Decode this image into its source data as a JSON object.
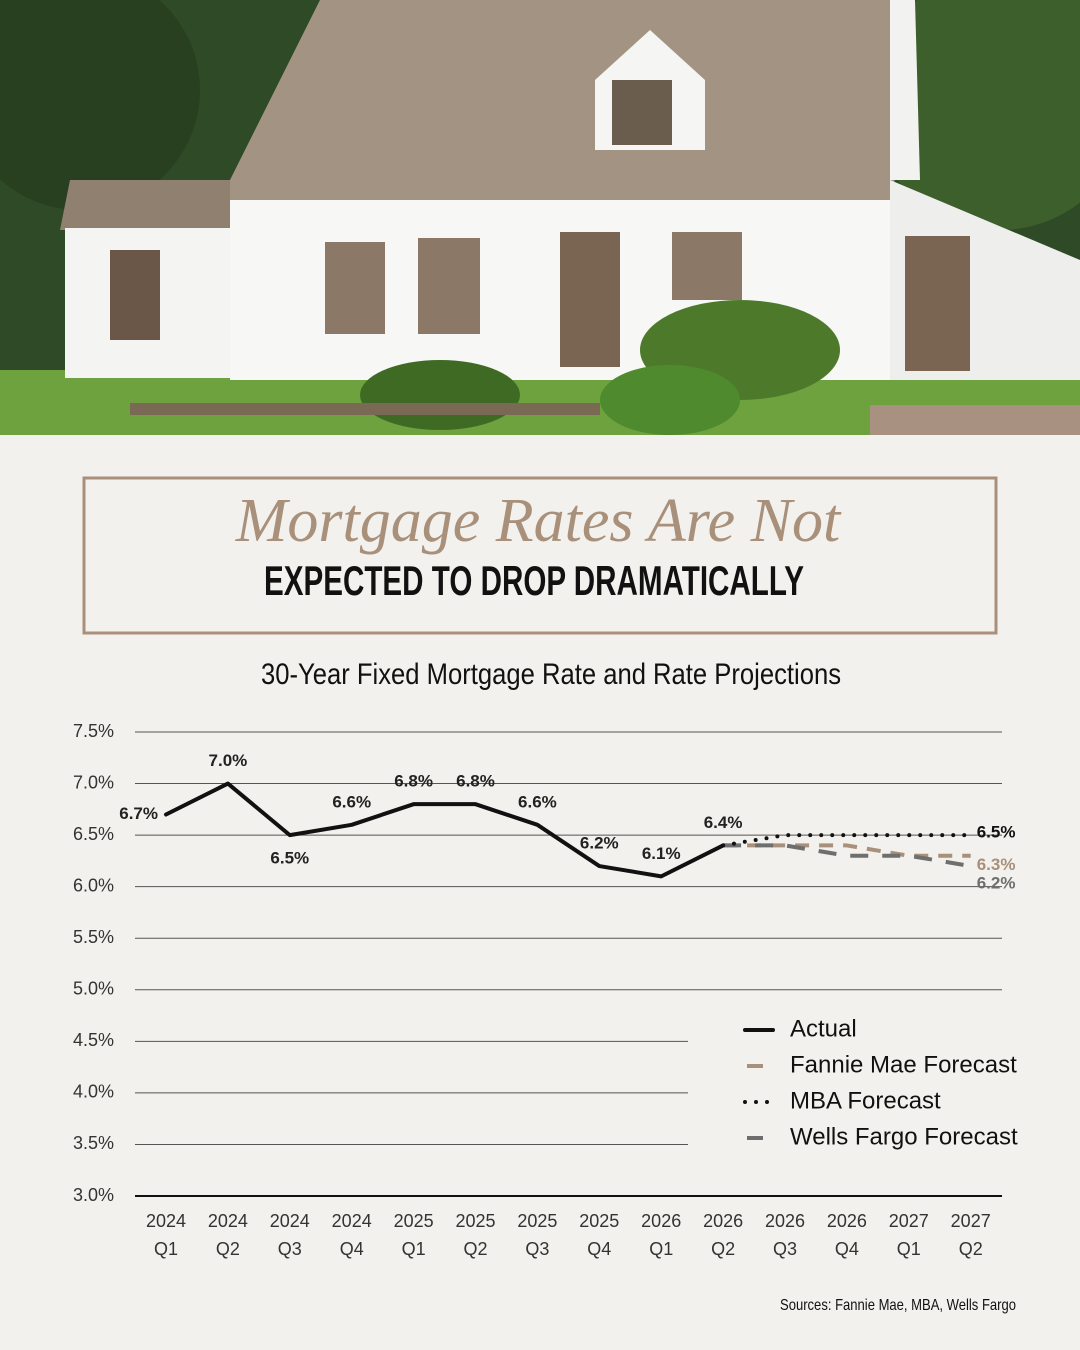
{
  "header": {
    "title_line1": "Mortgage Rates Are Not",
    "title_line2": "EXPECTED TO DROP DRAMATICALLY"
  },
  "chart_data": {
    "type": "line",
    "title": "30-Year Fixed Mortgage Rate and Rate Projections",
    "categories": [
      [
        "2024",
        "Q1"
      ],
      [
        "2024",
        "Q2"
      ],
      [
        "2024",
        "Q3"
      ],
      [
        "2024",
        "Q4"
      ],
      [
        "2025",
        "Q1"
      ],
      [
        "2025",
        "Q2"
      ],
      [
        "2025",
        "Q3"
      ],
      [
        "2025",
        "Q4"
      ],
      [
        "2026",
        "Q1"
      ],
      [
        "2026",
        "Q2"
      ],
      [
        "2026",
        "Q3"
      ],
      [
        "2026",
        "Q4"
      ],
      [
        "2027",
        "Q1"
      ],
      [
        "2027",
        "Q2"
      ]
    ],
    "ylim": [
      3.0,
      7.5
    ],
    "yticks": [
      {
        "value": 3.0,
        "label": "3.0%"
      },
      {
        "value": 3.5,
        "label": "3.5%"
      },
      {
        "value": 4.0,
        "label": "4.0%"
      },
      {
        "value": 4.5,
        "label": "4.5%"
      },
      {
        "value": 5.0,
        "label": "5.0%"
      },
      {
        "value": 5.5,
        "label": "5.5%"
      },
      {
        "value": 6.0,
        "label": "6.0%"
      },
      {
        "value": 6.5,
        "label": "6.5%"
      },
      {
        "value": 7.0,
        "label": "7.0%"
      },
      {
        "value": 7.5,
        "label": "7.5%"
      }
    ],
    "grid": true,
    "legend": "lower-right",
    "series": [
      {
        "name": "Actual",
        "color": "#111111",
        "style": "solid",
        "values": [
          6.7,
          7.0,
          6.5,
          6.6,
          6.8,
          6.8,
          6.6,
          6.2,
          6.1,
          6.4,
          null,
          null,
          null,
          null
        ],
        "value_labels": [
          "6.7%",
          "7.0%",
          "6.5%",
          "6.6%",
          "6.8%",
          "6.8%",
          "6.6%",
          "6.2%",
          "6.1%",
          "6.4%",
          null,
          null,
          null,
          null
        ]
      },
      {
        "name": "Fannie Mae Forecast",
        "color": "#a8907a",
        "style": "dashed",
        "values": [
          null,
          null,
          null,
          null,
          null,
          null,
          null,
          null,
          null,
          6.4,
          6.4,
          6.4,
          6.3,
          6.3
        ],
        "value_labels": [
          null,
          null,
          null,
          null,
          null,
          null,
          null,
          null,
          null,
          null,
          null,
          null,
          null,
          "6.3%"
        ]
      },
      {
        "name": "MBA Forecast",
        "color": "#111111",
        "style": "dotted",
        "values": [
          null,
          null,
          null,
          null,
          null,
          null,
          null,
          null,
          null,
          6.4,
          6.5,
          6.5,
          6.5,
          6.5
        ],
        "value_labels": [
          null,
          null,
          null,
          null,
          null,
          null,
          null,
          null,
          null,
          null,
          null,
          null,
          null,
          "6.5%"
        ]
      },
      {
        "name": "Wells Fargo Forecast",
        "color": "#6e6e6e",
        "style": "longdash",
        "values": [
          null,
          null,
          null,
          null,
          null,
          null,
          null,
          null,
          null,
          6.4,
          6.4,
          6.3,
          6.3,
          6.2
        ],
        "value_labels": [
          null,
          null,
          null,
          null,
          null,
          null,
          null,
          null,
          null,
          null,
          null,
          null,
          null,
          "6.2%"
        ]
      }
    ],
    "source": "Sources: Fannie Mae, MBA, Wells Fargo"
  }
}
